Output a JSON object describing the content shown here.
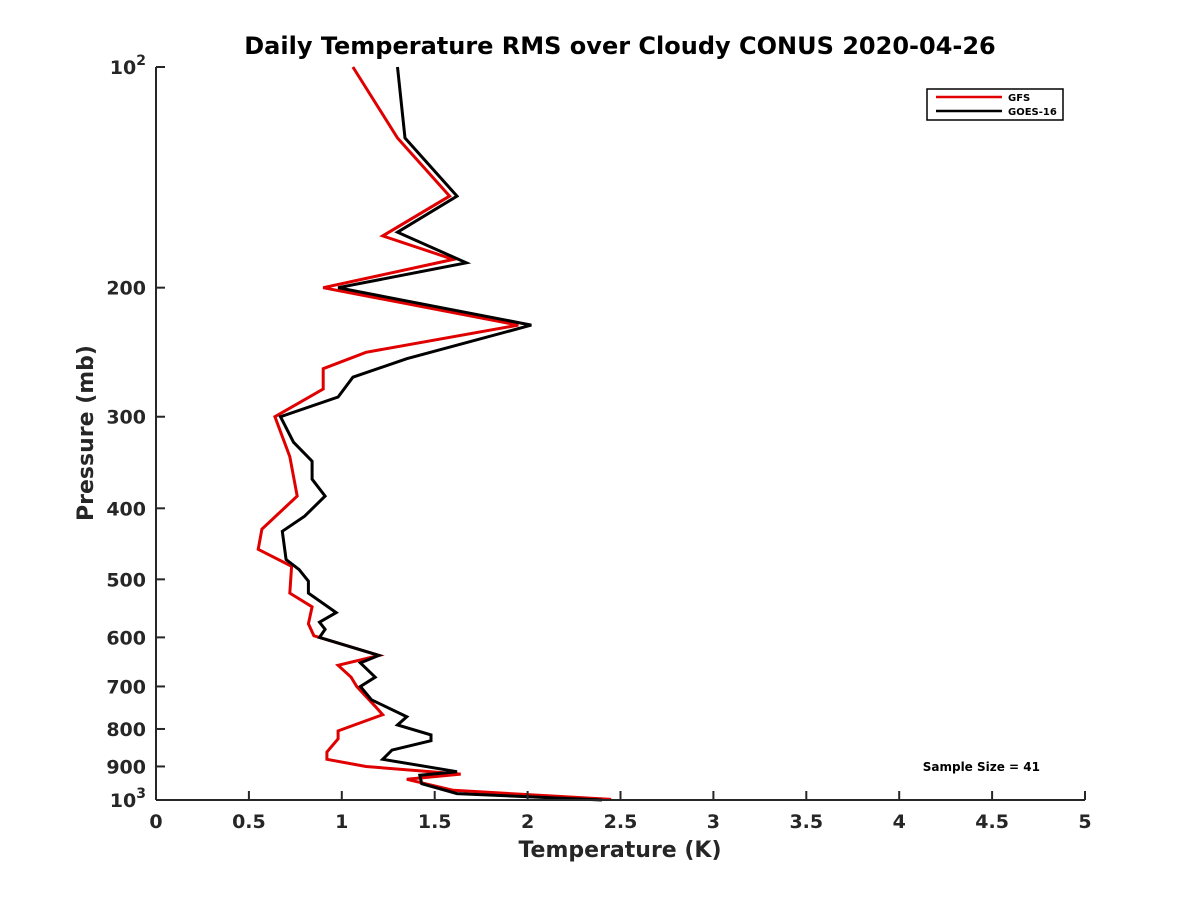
{
  "chart_data": {
    "type": "line",
    "title": "Daily Temperature RMS over Cloudy CONUS 2020-04-26",
    "xlabel": "Temperature (K)",
    "ylabel": "Pressure (mb)",
    "xlim": [
      0,
      5
    ],
    "ylim": [
      100,
      1000
    ],
    "y_scale": "log",
    "y_reversed": true,
    "grid": false,
    "legend_position": "top-right",
    "x_ticks": [
      "0",
      "0.5",
      "1",
      "1.5",
      "2",
      "2.5",
      "3",
      "3.5",
      "4",
      "4.5",
      "5"
    ],
    "x_tick_values": [
      0,
      0.5,
      1,
      1.5,
      2,
      2.5,
      3,
      3.5,
      4,
      4.5,
      5
    ],
    "y_ticks": [
      {
        "value": 100,
        "base": "10",
        "exp": "2"
      },
      {
        "value": 200,
        "label": "200"
      },
      {
        "value": 300,
        "label": "300"
      },
      {
        "value": 400,
        "label": "400"
      },
      {
        "value": 500,
        "label": "500"
      },
      {
        "value": 600,
        "label": "600"
      },
      {
        "value": 700,
        "label": "700"
      },
      {
        "value": 800,
        "label": "800"
      },
      {
        "value": 900,
        "label": "900"
      },
      {
        "value": 1000,
        "base": "10",
        "exp": "3"
      }
    ],
    "annotation": "Sample Size = 41",
    "series": [
      {
        "name": "GFS",
        "color": "#e00000",
        "points": [
          [
            1.06,
            100
          ],
          [
            1.3,
            125
          ],
          [
            1.58,
            150
          ],
          [
            1.22,
            170
          ],
          [
            1.6,
            183
          ],
          [
            0.9,
            200
          ],
          [
            1.95,
            225
          ],
          [
            1.13,
            245
          ],
          [
            0.9,
            258
          ],
          [
            0.9,
            275
          ],
          [
            0.64,
            300
          ],
          [
            0.72,
            340
          ],
          [
            0.76,
            385
          ],
          [
            0.57,
            427
          ],
          [
            0.55,
            455
          ],
          [
            0.73,
            480
          ],
          [
            0.72,
            522
          ],
          [
            0.84,
            545
          ],
          [
            0.82,
            575
          ],
          [
            0.85,
            597
          ],
          [
            1.2,
            635
          ],
          [
            0.98,
            655
          ],
          [
            1.05,
            680
          ],
          [
            1.08,
            700
          ],
          [
            1.18,
            745
          ],
          [
            1.22,
            765
          ],
          [
            0.98,
            805
          ],
          [
            0.98,
            825
          ],
          [
            0.92,
            860
          ],
          [
            0.92,
            880
          ],
          [
            1.13,
            900
          ],
          [
            1.64,
            922
          ],
          [
            1.35,
            937
          ],
          [
            1.6,
            970
          ],
          [
            2.45,
            998
          ]
        ]
      },
      {
        "name": "GOES-16",
        "color": "#000000",
        "points": [
          [
            1.3,
            100
          ],
          [
            1.34,
            125
          ],
          [
            1.62,
            150
          ],
          [
            1.3,
            168
          ],
          [
            1.67,
            185
          ],
          [
            0.98,
            200
          ],
          [
            2.02,
            225
          ],
          [
            1.35,
            250
          ],
          [
            1.06,
            265
          ],
          [
            0.98,
            282
          ],
          [
            0.67,
            300
          ],
          [
            0.74,
            325
          ],
          [
            0.84,
            345
          ],
          [
            0.84,
            365
          ],
          [
            0.91,
            385
          ],
          [
            0.8,
            410
          ],
          [
            0.68,
            430
          ],
          [
            0.7,
            470
          ],
          [
            0.77,
            485
          ],
          [
            0.82,
            503
          ],
          [
            0.82,
            522
          ],
          [
            0.97,
            555
          ],
          [
            0.88,
            572
          ],
          [
            0.91,
            585
          ],
          [
            0.88,
            600
          ],
          [
            1.2,
            635
          ],
          [
            1.1,
            650
          ],
          [
            1.18,
            680
          ],
          [
            1.1,
            700
          ],
          [
            1.16,
            730
          ],
          [
            1.35,
            770
          ],
          [
            1.3,
            790
          ],
          [
            1.48,
            815
          ],
          [
            1.48,
            830
          ],
          [
            1.27,
            855
          ],
          [
            1.22,
            880
          ],
          [
            1.62,
            915
          ],
          [
            1.42,
            925
          ],
          [
            1.43,
            950
          ],
          [
            1.62,
            980
          ],
          [
            2.4,
            1000
          ]
        ]
      }
    ]
  }
}
